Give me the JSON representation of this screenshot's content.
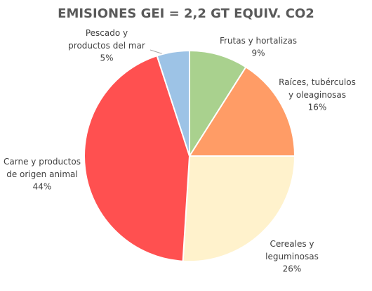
{
  "chart_data": {
    "type": "pie",
    "title": "EMISIONES GEI = 2,2 GT EQUIV. CO2",
    "categories": [
      "Frutas y hortalizas",
      "Raíces, tubérculos\ny oleaginosas",
      "Cereales y\nleguminosas",
      "Carne y productos\nde origen animal",
      "Pescado y\nproductos del mar"
    ],
    "values": [
      9,
      16,
      26,
      44,
      5
    ],
    "value_labels": [
      "9%",
      "16%",
      "26%",
      "44%",
      "5%"
    ],
    "colors": [
      "#a9d18e",
      "#ff9c66",
      "#fff2cc",
      "#ff5050",
      "#9dc3e6"
    ]
  }
}
